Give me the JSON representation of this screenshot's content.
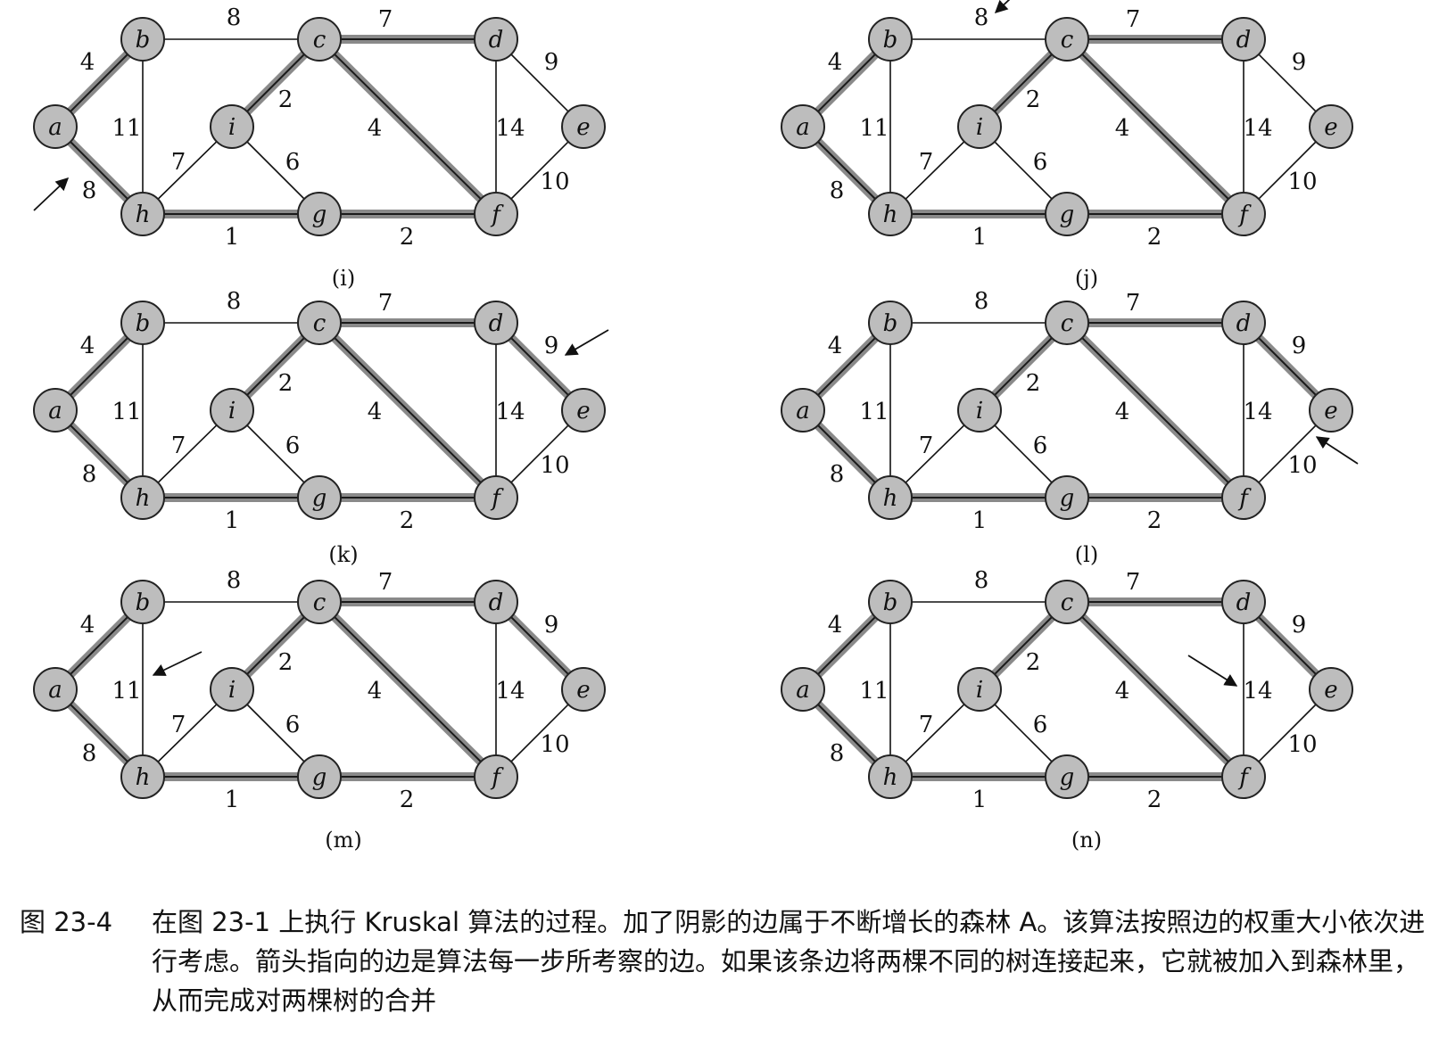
{
  "nodes": [
    {
      "id": "a",
      "label": "a"
    },
    {
      "id": "b",
      "label": "b"
    },
    {
      "id": "c",
      "label": "c"
    },
    {
      "id": "d",
      "label": "d"
    },
    {
      "id": "e",
      "label": "e"
    },
    {
      "id": "f",
      "label": "f"
    },
    {
      "id": "g",
      "label": "g"
    },
    {
      "id": "h",
      "label": "h"
    },
    {
      "id": "i",
      "label": "i"
    }
  ],
  "edges": [
    {
      "id": "ab",
      "from": "a",
      "to": "b",
      "weight": "4"
    },
    {
      "id": "ah",
      "from": "a",
      "to": "h",
      "weight": "8"
    },
    {
      "id": "bc",
      "from": "b",
      "to": "c",
      "weight": "8"
    },
    {
      "id": "bh",
      "from": "b",
      "to": "h",
      "weight": "11"
    },
    {
      "id": "cd",
      "from": "c",
      "to": "d",
      "weight": "7"
    },
    {
      "id": "ci",
      "from": "c",
      "to": "i",
      "weight": "2"
    },
    {
      "id": "cf",
      "from": "c",
      "to": "f",
      "weight": "4"
    },
    {
      "id": "de",
      "from": "d",
      "to": "e",
      "weight": "9"
    },
    {
      "id": "df",
      "from": "d",
      "to": "f",
      "weight": "14"
    },
    {
      "id": "ef",
      "from": "e",
      "to": "f",
      "weight": "10"
    },
    {
      "id": "hi",
      "from": "h",
      "to": "i",
      "weight": "7"
    },
    {
      "id": "ig",
      "from": "i",
      "to": "g",
      "weight": "6"
    },
    {
      "id": "hg",
      "from": "h",
      "to": "g",
      "weight": "1"
    },
    {
      "id": "gf",
      "from": "g",
      "to": "f",
      "weight": "2"
    }
  ],
  "panels": [
    {
      "id": "i",
      "caption": "(i)",
      "shaded": [
        "ab",
        "ah",
        "cd",
        "ci",
        "cf",
        "hg",
        "gf"
      ],
      "arrow_edge": "ah"
    },
    {
      "id": "j",
      "caption": "(j)",
      "shaded": [
        "ab",
        "ah",
        "cd",
        "ci",
        "cf",
        "hg",
        "gf"
      ],
      "arrow_edge": "bc"
    },
    {
      "id": "k",
      "caption": "(k)",
      "shaded": [
        "ab",
        "ah",
        "cd",
        "ci",
        "cf",
        "hg",
        "gf",
        "de"
      ],
      "arrow_edge": "de"
    },
    {
      "id": "l",
      "caption": "(l)",
      "shaded": [
        "ab",
        "ah",
        "cd",
        "ci",
        "cf",
        "hg",
        "gf",
        "de"
      ],
      "arrow_edge": "ef"
    },
    {
      "id": "m",
      "caption": "(m)",
      "shaded": [
        "ab",
        "ah",
        "cd",
        "ci",
        "cf",
        "hg",
        "gf",
        "de"
      ],
      "arrow_edge": "bh"
    },
    {
      "id": "n",
      "caption": "(n)",
      "shaded": [
        "ab",
        "ah",
        "cd",
        "ci",
        "cf",
        "hg",
        "gf",
        "de"
      ],
      "arrow_edge": "df"
    }
  ],
  "caption": {
    "figure_number": "图 23-4",
    "text": "在图 23-1 上执行 Kruskal 算法的过程。加了阴影的边属于不断增长的森林 A。该算法按照边的权重大小依次进行考虑。箭头指向的边是算法每一步所考察的边。如果该条边将两棵不同的树连接起来，它就被加入到森林里，从而完成对两棵树的合并"
  }
}
